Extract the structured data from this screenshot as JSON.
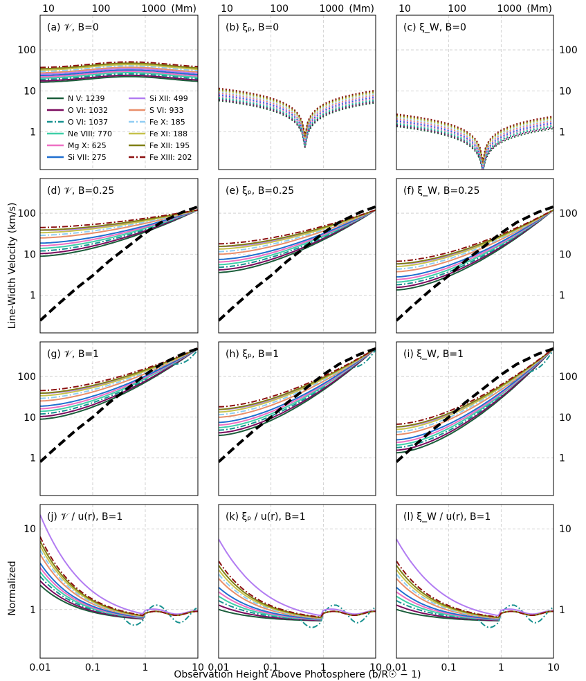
{
  "chart_data": {
    "type": "line",
    "xlabel": "Observation Height Above Photosphere (b/R☉ − 1)",
    "ylabel_velocity": "Line-Width Velocity (km/s)",
    "ylabel_normalized": "Normalized",
    "top_axis_unit": "(Mm)",
    "top_axis_ticks": [
      "10",
      "100",
      "1000"
    ],
    "x_ticks": [
      "0.01",
      "0.1",
      "1",
      "10"
    ],
    "y_ticks_velocity": [
      "1",
      "10",
      "100"
    ],
    "y_ticks_normalized": [
      "1",
      "10"
    ],
    "xlim": [
      0.01,
      10
    ],
    "ylim_velocity": [
      0.12,
      700
    ],
    "ylim_normalized": [
      0.25,
      20
    ],
    "legend": [
      {
        "label": "N V: 1239",
        "color": "#1b5e3b",
        "dash": "solid"
      },
      {
        "label": "O VI: 1032",
        "color": "#7a0a5e",
        "dash": "solid"
      },
      {
        "label": "O VI: 1037",
        "color": "#17918f",
        "dash": "dashdot"
      },
      {
        "label": "Ne VIII: 770",
        "color": "#3fcfa8",
        "dash": "solid"
      },
      {
        "label": "Mg X: 625",
        "color": "#ee6fc3",
        "dash": "solid"
      },
      {
        "label": "Si VII: 275",
        "color": "#1f6fcf",
        "dash": "solid"
      },
      {
        "label": "Si XII: 499",
        "color": "#b27cf2",
        "dash": "solid"
      },
      {
        "label": "S VI: 933",
        "color": "#e98e6a",
        "dash": "solid"
      },
      {
        "label": "Fe X: 185",
        "color": "#8fcdf3",
        "dash": "dashdot"
      },
      {
        "label": "Fe XI: 188",
        "color": "#c6c24c",
        "dash": "solid"
      },
      {
        "label": "Fe XII: 195",
        "color": "#7f7f14",
        "dash": "solid"
      },
      {
        "label": "Fe XIII: 202",
        "color": "#8c1010",
        "dash": "dashdot"
      }
    ],
    "panels": [
      {
        "title": "(a)  𝒱,  B=0",
        "quantity": "V",
        "B": 0,
        "kind": "velocity"
      },
      {
        "title": "(b)  ξₚ,  B=0",
        "quantity": "xi_P",
        "B": 0,
        "kind": "velocity"
      },
      {
        "title": "(c)  ξ_W,  B=0",
        "quantity": "xi_W",
        "B": 0,
        "kind": "velocity"
      },
      {
        "title": "(d)  𝒱,  B=0.25",
        "quantity": "V",
        "B": 0.25,
        "kind": "velocity"
      },
      {
        "title": "(e)  ξₚ,  B=0.25",
        "quantity": "xi_P",
        "B": 0.25,
        "kind": "velocity"
      },
      {
        "title": "(f)  ξ_W,  B=0.25",
        "quantity": "xi_W",
        "B": 0.25,
        "kind": "velocity"
      },
      {
        "title": "(g)  𝒱,  B=1",
        "quantity": "V",
        "B": 1,
        "kind": "velocity"
      },
      {
        "title": "(h)  ξₚ,  B=1",
        "quantity": "xi_P",
        "B": 1,
        "kind": "velocity"
      },
      {
        "title": "(i)  ξ_W,  B=1",
        "quantity": "xi_W",
        "B": 1,
        "kind": "velocity"
      },
      {
        "title": "(j)  𝒱 / u(r),  B=1",
        "quantity": "V/u",
        "B": 1,
        "kind": "normalized"
      },
      {
        "title": "(k)  ξₚ / u(r),  B=1",
        "quantity": "xi_P/u",
        "B": 1,
        "kind": "normalized"
      },
      {
        "title": "(l)  ξ_W / u(r),  B=1",
        "quantity": "xi_W/u",
        "B": 1,
        "kind": "normalized"
      }
    ],
    "reference_curve": {
      "label": "u(r)",
      "style": "thick black dashed",
      "x": [
        0.01,
        0.02,
        0.05,
        0.1,
        0.2,
        0.5,
        1,
        2,
        5,
        10
      ],
      "y": [
        0.8,
        1.8,
        5,
        10,
        22,
        55,
        110,
        200,
        350,
        480
      ]
    },
    "series_B0_V": {
      "x": [
        0.01,
        0.1,
        1,
        10
      ],
      "y": [
        20,
        28,
        35,
        28
      ]
    },
    "series_B1_V_end": {
      "x": [
        1,
        3,
        10
      ],
      "y": [
        180,
        300,
        480
      ]
    }
  }
}
